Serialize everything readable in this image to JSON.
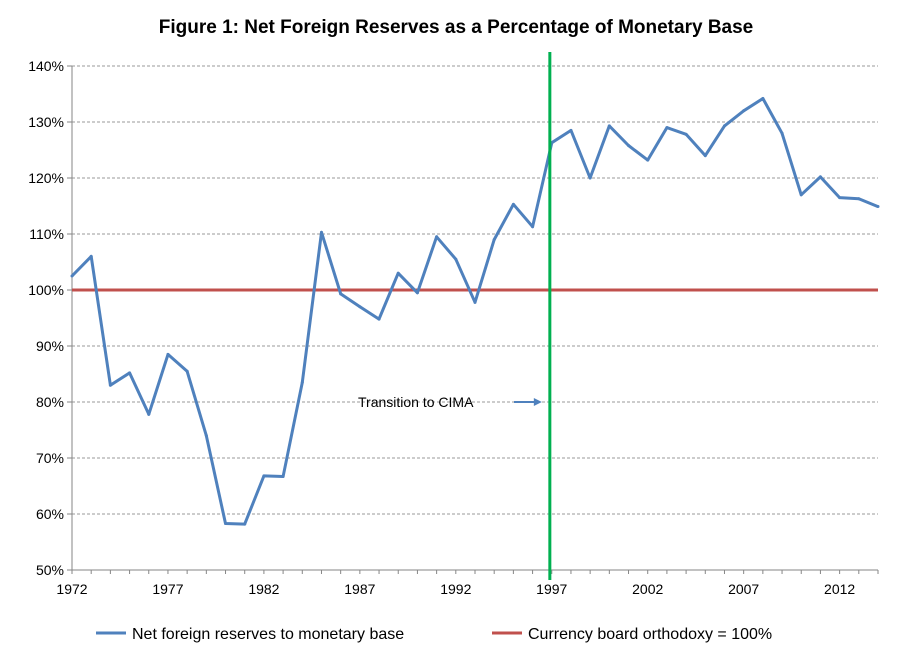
{
  "chart_data": {
    "type": "line",
    "title": "Figure 1: Net Foreign Reserves as a Percentage of Monetary Base",
    "xlim": [
      1972,
      2014
    ],
    "ylim": [
      50,
      140
    ],
    "y_ticks": [
      "50%",
      "60%",
      "70%",
      "80%",
      "90%",
      "100%",
      "110%",
      "120%",
      "130%",
      "140%"
    ],
    "x_ticks": [
      "1972",
      "1977",
      "1982",
      "1987",
      "1992",
      "1997",
      "2002",
      "2007",
      "2012"
    ],
    "grid": "horizontal dashed",
    "legend_position": "bottom",
    "series": [
      {
        "name": "Net foreign reserves to monetary base",
        "color": "#4F81BD",
        "x": [
          1972,
          1973,
          1974,
          1975,
          1976,
          1977,
          1978,
          1979,
          1980,
          1981,
          1982,
          1983,
          1984,
          1985,
          1986,
          1987,
          1988,
          1989,
          1990,
          1991,
          1992,
          1993,
          1994,
          1995,
          1996,
          1997,
          1998,
          1999,
          2000,
          2001,
          2002,
          2003,
          2004,
          2005,
          2006,
          2007,
          2008,
          2009,
          2010,
          2011,
          2012,
          2013,
          2014
        ],
        "values": [
          102.5,
          106,
          83,
          85.2,
          77.8,
          88.5,
          85.5,
          74,
          58.3,
          58.2,
          66.8,
          66.7,
          83.5,
          110.3,
          99.3,
          97,
          94.8,
          103,
          99.5,
          109.5,
          105.5,
          97.8,
          109,
          115.3,
          111.3,
          126.3,
          128.5,
          120,
          129.3,
          125.8,
          123.2,
          129,
          127.8,
          124,
          129.3,
          132,
          134.2,
          128,
          117,
          120.2,
          116.5,
          116.3,
          114.9
        ]
      },
      {
        "name": "Currency board orthodoxy = 100%",
        "color": "#C0504D",
        "x": [
          1972,
          2014
        ],
        "values": [
          100,
          100
        ]
      }
    ],
    "annotations": [
      {
        "text": "Transition to CIMA",
        "arrow_target_x": 1996.9,
        "arrow_target_y": 80
      }
    ],
    "marker_line": {
      "x": 1996.9,
      "color": "#00B050"
    }
  }
}
